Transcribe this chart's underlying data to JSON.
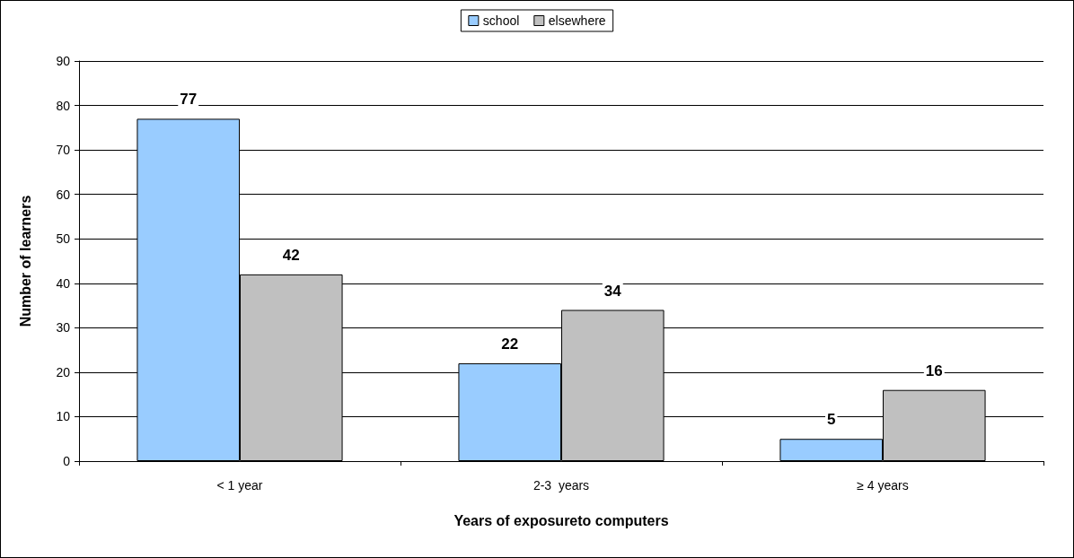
{
  "chart_data": {
    "type": "bar",
    "xlabel": "Years of exposureto computers",
    "ylabel": "Number of learners",
    "categories": [
      "< 1 year",
      "2-3  years",
      "≥ 4 years"
    ],
    "series": [
      {
        "name": "school",
        "color": "#99ccff",
        "values": [
          77,
          22,
          5
        ]
      },
      {
        "name": "elsewhere",
        "color": "#c0c0c0",
        "values": [
          42,
          34,
          16
        ]
      }
    ],
    "ylim": [
      0,
      90
    ],
    "yticks": [
      0,
      10,
      20,
      30,
      40,
      50,
      60,
      70,
      80,
      90
    ],
    "grid": "y",
    "legend": "top",
    "data_labels": true
  }
}
